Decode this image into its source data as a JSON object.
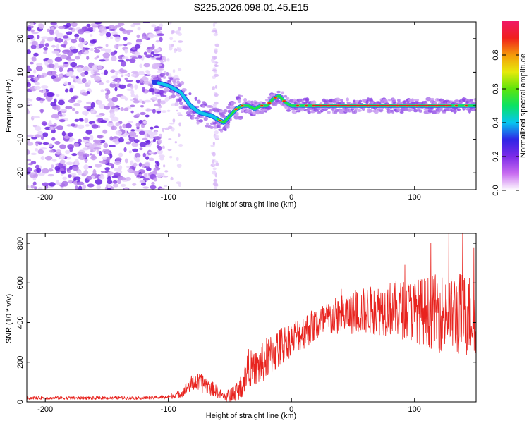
{
  "title": "S225.2026.098.01.45.E15",
  "colors": {
    "snr_line": "#e8231e",
    "frame": "#000000",
    "ridge": "#e8231e"
  },
  "chart_data": [
    {
      "type": "heatmap",
      "xlabel": "Height of straight line (km)",
      "ylabel": "Frequency (Hz)",
      "xlim": [
        -215,
        150
      ],
      "ylim": [
        -25,
        25
      ],
      "xticks": [
        -200,
        -100,
        0,
        100
      ],
      "yticks": [
        20,
        10,
        0,
        -10,
        -20
      ],
      "ridge": {
        "x": [
          -110,
          -100,
          -90,
          -82,
          -75,
          -65,
          -55,
          -50,
          -45,
          -40,
          -35,
          -30,
          -25,
          -20,
          -15,
          -10,
          -5,
          0,
          10,
          20,
          40,
          60,
          80,
          100,
          120,
          140,
          150
        ],
        "y": [
          7,
          6,
          4,
          0,
          -2,
          -3,
          -5,
          -3,
          -1,
          0,
          0,
          -1,
          0,
          0,
          2,
          3,
          1,
          0,
          0,
          0,
          0,
          0,
          0,
          0,
          0,
          0,
          0
        ]
      },
      "colorbar": {
        "label": "Normalized spectral amplitude",
        "range": [
          0,
          1
        ],
        "ticks": [
          0.0,
          0.2,
          0.4,
          0.6,
          0.8
        ],
        "tick_labels": [
          "0.0",
          "0.2",
          "0.4",
          "0.6",
          "0.8"
        ]
      }
    },
    {
      "type": "line",
      "xlabel": "Height of straight line (km)",
      "ylabel": "SNR (10 * v/v)",
      "xlim": [
        -215,
        150
      ],
      "ylim": [
        0,
        850
      ],
      "xticks": [
        -200,
        -100,
        0,
        100
      ],
      "yticks": [
        0,
        200,
        400,
        600,
        800
      ],
      "envelope": {
        "x": [
          -215,
          -120,
          -100,
          -90,
          -80,
          -70,
          -60,
          -55,
          -50,
          -40,
          -35,
          -30,
          -20,
          -10,
          0,
          20,
          40,
          60,
          80,
          100,
          120,
          140,
          150
        ],
        "mean": [
          20,
          20,
          25,
          40,
          100,
          90,
          50,
          25,
          30,
          80,
          180,
          150,
          220,
          270,
          320,
          390,
          440,
          460,
          470,
          460,
          450,
          440,
          440
        ],
        "amp": [
          8,
          8,
          10,
          20,
          45,
          50,
          30,
          20,
          40,
          60,
          90,
          100,
          110,
          110,
          90,
          90,
          100,
          120,
          140,
          160,
          200,
          220,
          200
        ]
      }
    }
  ]
}
